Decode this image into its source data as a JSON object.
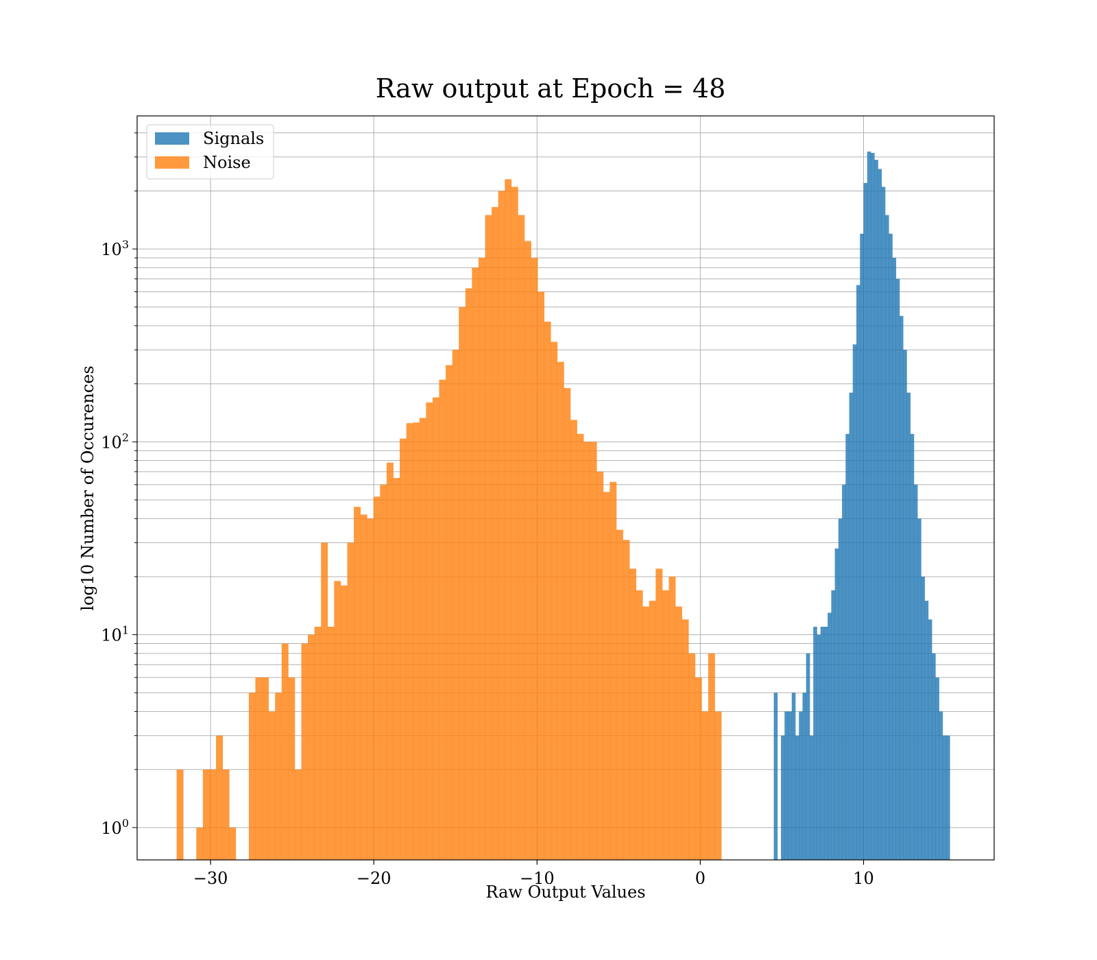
{
  "chart_data": {
    "type": "histogram",
    "title": "Raw output at Epoch = 48",
    "xlabel": "Raw Output Values",
    "ylabel": "log10 Number of Occurences",
    "yscale": "log",
    "xlim": [
      -34.5,
      18
    ],
    "ylim": [
      0.68,
      4900
    ],
    "grid": true,
    "legend_position": "upper-left",
    "x_ticks": [
      -30,
      -20,
      -10,
      0,
      10
    ],
    "x_tick_labels": [
      "−30",
      "−20",
      "−10",
      "0",
      "10"
    ],
    "y_major_ticks": [
      1,
      10,
      100,
      1000
    ],
    "y_tick_labels": [
      "10",
      "10",
      "10",
      "10"
    ],
    "y_tick_exponents": [
      "0",
      "1",
      "2",
      "3"
    ],
    "series": [
      {
        "name": "Signals",
        "color": "#1f77b4",
        "opacity": 0.8,
        "bin_start": 4.5,
        "bin_width": 0.22,
        "counts": [
          5,
          0,
          3,
          4,
          4,
          5,
          3,
          4,
          5,
          8,
          3,
          11,
          10,
          11,
          11,
          13,
          17,
          28,
          40,
          60,
          110,
          180,
          320,
          650,
          1200,
          2200,
          3200,
          3150,
          2900,
          2600,
          2100,
          1500,
          1200,
          900,
          700,
          450,
          300,
          180,
          110,
          60,
          40,
          20,
          15,
          12,
          8,
          6,
          4,
          3,
          3
        ]
      },
      {
        "name": "Noise",
        "color": "#ff7f0e",
        "opacity": 0.8,
        "bin_start": -32.08,
        "bin_width": 0.402,
        "counts": [
          2,
          0,
          0,
          1,
          2,
          2,
          3,
          2,
          1,
          0,
          0,
          5,
          6,
          6,
          4,
          5,
          9,
          6,
          2,
          9,
          10,
          11,
          30,
          11,
          19,
          18,
          30,
          46,
          42,
          40,
          52,
          60,
          78,
          65,
          104,
          125,
          126,
          133,
          160,
          170,
          210,
          250,
          300,
          500,
          625,
          800,
          900,
          1500,
          1650,
          2000,
          2300,
          2100,
          1500,
          1100,
          900,
          600,
          420,
          330,
          260,
          190,
          130,
          110,
          100,
          100,
          70,
          55,
          62,
          35,
          31,
          22,
          17,
          14,
          15,
          22,
          17,
          20,
          14,
          12,
          8,
          6,
          4,
          8,
          4
        ]
      }
    ]
  }
}
